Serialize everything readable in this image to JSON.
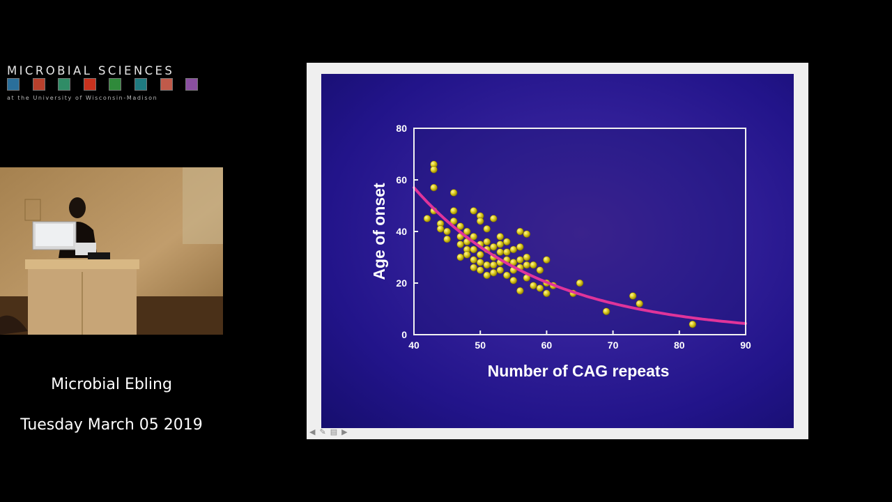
{
  "logo": {
    "title": "MICROBIAL SCIENCES",
    "subtitle": "at the University of Wisconsin-Madison",
    "tile_colors": [
      "#2a6f9b",
      "#b8402c",
      "#2f8c66",
      "#c8321e",
      "#2f8a3a",
      "#1f7a80",
      "#c05a4a",
      "#8a4fa0"
    ]
  },
  "video": {
    "wall_color": "#b08e62",
    "podium_color": "#c7a577"
  },
  "captions": {
    "speaker": "Microbial Ebling",
    "date": "Tuesday March 05 2019"
  },
  "slide_controls": [
    "prev-icon",
    "pen-icon",
    "menu-icon",
    "next-icon"
  ],
  "chart_data": {
    "type": "scatter",
    "title": "",
    "xlabel": "Number of CAG repeats",
    "ylabel": "Age of onset",
    "xlim": [
      40,
      90
    ],
    "ylim": [
      0,
      80
    ],
    "xticks": [
      40,
      50,
      60,
      70,
      80,
      90
    ],
    "yticks": [
      0,
      20,
      40,
      60,
      80
    ],
    "grid": false,
    "point_color": "#d8c81a",
    "curve_color": "#e0349a",
    "points": [
      [
        42,
        45
      ],
      [
        43,
        66
      ],
      [
        43,
        64
      ],
      [
        43,
        57
      ],
      [
        43,
        48
      ],
      [
        44,
        43
      ],
      [
        44,
        41
      ],
      [
        45,
        40
      ],
      [
        45,
        37
      ],
      [
        46,
        55
      ],
      [
        46,
        48
      ],
      [
        46,
        44
      ],
      [
        47,
        42
      ],
      [
        47,
        38
      ],
      [
        47,
        35
      ],
      [
        47,
        30
      ],
      [
        48,
        40
      ],
      [
        48,
        36
      ],
      [
        48,
        33
      ],
      [
        48,
        31
      ],
      [
        49,
        48
      ],
      [
        49,
        38
      ],
      [
        49,
        33
      ],
      [
        49,
        29
      ],
      [
        49,
        26
      ],
      [
        50,
        46
      ],
      [
        50,
        44
      ],
      [
        50,
        35
      ],
      [
        50,
        31
      ],
      [
        50,
        28
      ],
      [
        50,
        25
      ],
      [
        51,
        41
      ],
      [
        51,
        36
      ],
      [
        51,
        33
      ],
      [
        51,
        27
      ],
      [
        51,
        23
      ],
      [
        52,
        45
      ],
      [
        52,
        34
      ],
      [
        52,
        30
      ],
      [
        52,
        27
      ],
      [
        52,
        24
      ],
      [
        53,
        38
      ],
      [
        53,
        35
      ],
      [
        53,
        32
      ],
      [
        53,
        28
      ],
      [
        53,
        25
      ],
      [
        54,
        36
      ],
      [
        54,
        32
      ],
      [
        54,
        29
      ],
      [
        54,
        23
      ],
      [
        55,
        33
      ],
      [
        55,
        28
      ],
      [
        55,
        25
      ],
      [
        55,
        21
      ],
      [
        56,
        40
      ],
      [
        56,
        34
      ],
      [
        56,
        29
      ],
      [
        56,
        26
      ],
      [
        56,
        17
      ],
      [
        57,
        39
      ],
      [
        57,
        30
      ],
      [
        57,
        27
      ],
      [
        57,
        22
      ],
      [
        58,
        27
      ],
      [
        58,
        19
      ],
      [
        59,
        25
      ],
      [
        59,
        18
      ],
      [
        60,
        29
      ],
      [
        60,
        20
      ],
      [
        60,
        16
      ],
      [
        61,
        19
      ],
      [
        64,
        16
      ],
      [
        65,
        20
      ],
      [
        69,
        9
      ],
      [
        73,
        15
      ],
      [
        74,
        12
      ],
      [
        82,
        4
      ]
    ],
    "curve": {
      "a": 57,
      "b": 0.0516,
      "x0": 40
    }
  }
}
